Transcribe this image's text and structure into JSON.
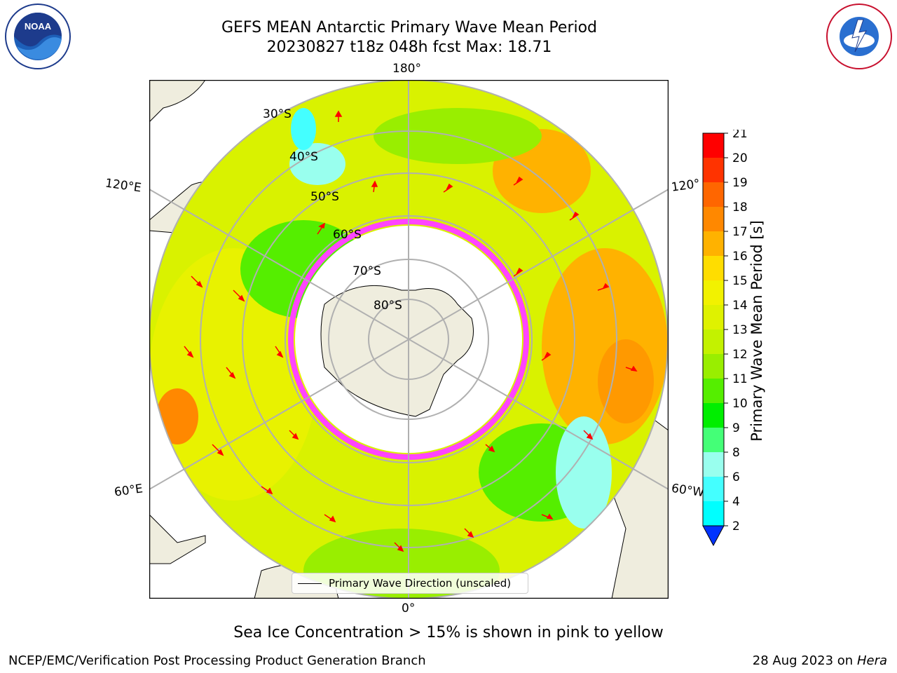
{
  "title": {
    "line1": "GEFS MEAN Antarctic Primary Wave Mean Period",
    "line2": "20230827 t18z 048h fcst   Max: 18.71"
  },
  "map": {
    "longitude_labels": {
      "top": "180°",
      "bottom": "0°",
      "left_upper": "120°E",
      "left_lower": "60°E",
      "right_upper": "120°",
      "right_lower": "60°W"
    },
    "latitude_labels": [
      "30°S",
      "40°S",
      "50°S",
      "60°S",
      "70°S",
      "80°S"
    ],
    "legend": "Primary Wave Direction (unscaled)",
    "arrow_color": "#ff0000",
    "land_color": "#efedde",
    "sea_ice_color": "#ff44ff"
  },
  "colorbar": {
    "label": "Primary Wave Mean Period [s]",
    "ticks": [
      "21",
      "20",
      "19",
      "18",
      "17",
      "16",
      "15",
      "14",
      "13",
      "12",
      "11",
      "10",
      "9",
      "8",
      "6",
      "4",
      "2"
    ],
    "colors": [
      "#ff0000",
      "#ff3300",
      "#ff6600",
      "#ff8800",
      "#ffb200",
      "#ffdd00",
      "#f2f200",
      "#dff200",
      "#c3f200",
      "#99ee00",
      "#55ee00",
      "#00ee00",
      "#44ff77",
      "#99ffee",
      "#44ffff",
      "#00ffff",
      "#00ccff",
      "#0077ff",
      "#0033ff"
    ]
  },
  "footnote": "Sea Ice Concentration > 15% is shown in pink to yellow",
  "credits": {
    "left": "NCEP/EMC/Verification Post Processing Product Generation Branch",
    "right_date": "28 Aug 2023 on",
    "right_machine": "Hera"
  },
  "logos": {
    "noaa_text": "NOAA",
    "nws_text": "NATIONAL WEATHER SERVICE"
  }
}
